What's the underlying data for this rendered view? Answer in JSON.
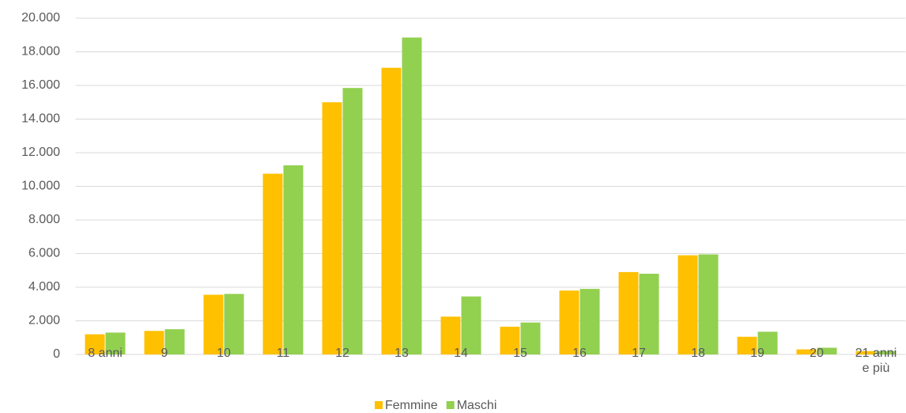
{
  "chart_data": {
    "type": "bar",
    "categories": [
      "8 anni",
      "9",
      "10",
      "11",
      "12",
      "13",
      "14",
      "15",
      "16",
      "17",
      "18",
      "19",
      "20",
      "21 anni e più"
    ],
    "series": [
      {
        "name": "Femmine",
        "color": "#ffc000",
        "values": [
          1200,
          1400,
          3550,
          10750,
          15000,
          17050,
          2250,
          1650,
          3800,
          4900,
          5900,
          1050,
          300,
          200
        ]
      },
      {
        "name": "Maschi",
        "color": "#92d050",
        "values": [
          1300,
          1500,
          3600,
          11250,
          15850,
          18850,
          3450,
          1900,
          3900,
          4800,
          5950,
          1350,
          400,
          200
        ]
      }
    ],
    "ylim": [
      0,
      20000
    ],
    "yticks": [
      0,
      {
        "value": 2000,
        "label": "2.000"
      },
      {
        "value": 4000,
        "label": "4.000"
      },
      {
        "value": 6000,
        "label": "6.000"
      },
      {
        "value": 8000,
        "label": "8.000"
      },
      {
        "value": 10000,
        "label": "10.000"
      },
      {
        "value": 12000,
        "label": "12.000"
      },
      {
        "value": 14000,
        "label": "14.000"
      },
      {
        "value": 16000,
        "label": "16.000"
      },
      {
        "value": 18000,
        "label": "18.000"
      },
      {
        "value": 20000,
        "label": "20.000"
      }
    ],
    "grid": true,
    "legend": "bottom"
  }
}
